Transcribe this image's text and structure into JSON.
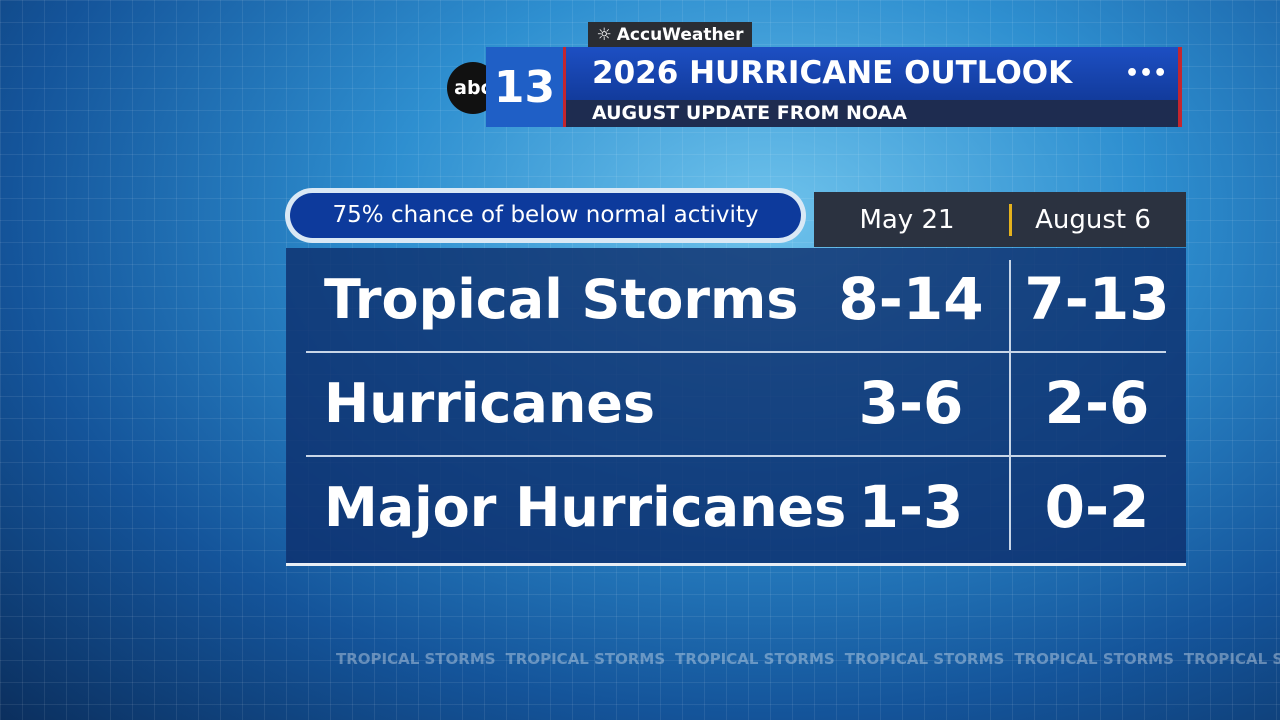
{
  "header": {
    "weather_brand": "AccuWeather",
    "logo": {
      "network": "abc",
      "channel": "13"
    },
    "title": "2026 HURRICANE OUTLOOK",
    "subtitle": "AUGUST UPDATE FROM NOAA",
    "menu": "•••"
  },
  "table": {
    "note": "75% chance of below normal activity",
    "columns": [
      "May 21",
      "August 6"
    ],
    "rows": [
      [
        "Tropical Storms",
        "8-14",
        "7-13"
      ],
      [
        "Hurricanes",
        "3-6",
        "2-6"
      ],
      [
        "Major Hurricanes",
        "1-3",
        "0-2"
      ]
    ]
  },
  "ticker": {
    "text": "TROPICAL STORMS"
  }
}
